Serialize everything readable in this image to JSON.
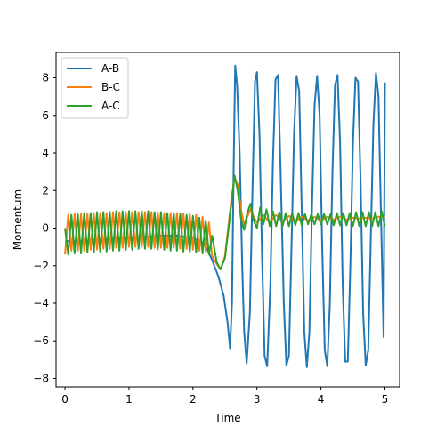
{
  "chart_data": {
    "type": "line",
    "title": "",
    "xlabel": "Time",
    "ylabel": "Momentum",
    "xlim": [
      -0.14,
      5.23
    ],
    "ylim": [
      -8.45,
      9.35
    ],
    "xticks": [
      0,
      1,
      2,
      3,
      4,
      5
    ],
    "yticks": [
      -8,
      -6,
      -4,
      -2,
      0,
      2,
      4,
      6,
      8
    ],
    "grid": false,
    "legend_position": "upper-left",
    "series": [
      {
        "name": "A-B",
        "color": "#1f77b4",
        "points": [
          [
            0.0,
            -0.7
          ],
          [
            0.25,
            -0.68
          ],
          [
            0.5,
            -0.63
          ],
          [
            0.75,
            -0.57
          ],
          [
            1.0,
            -0.52
          ],
          [
            1.25,
            -0.46
          ],
          [
            1.5,
            -0.4
          ],
          [
            1.75,
            -0.4
          ],
          [
            2.0,
            -0.55
          ],
          [
            2.15,
            -0.75
          ],
          [
            2.22,
            -1.1
          ],
          [
            2.3,
            -1.7
          ],
          [
            2.4,
            -2.6
          ],
          [
            2.48,
            -3.6
          ],
          [
            2.54,
            -5.0
          ],
          [
            2.58,
            -6.4
          ],
          [
            2.61,
            -4.0
          ],
          [
            2.635,
            3.0
          ],
          [
            2.66,
            8.65
          ],
          [
            2.69,
            7.6
          ],
          [
            2.73,
            4.0
          ],
          [
            2.77,
            -2.0
          ],
          [
            2.8,
            -5.5
          ],
          [
            2.84,
            -7.2
          ],
          [
            2.89,
            -4.5
          ],
          [
            2.93,
            2.0
          ],
          [
            2.97,
            7.8
          ],
          [
            3.0,
            8.3
          ],
          [
            3.04,
            5.0
          ],
          [
            3.08,
            -1.5
          ],
          [
            3.12,
            -6.8
          ],
          [
            3.16,
            -7.35
          ],
          [
            3.21,
            -3.0
          ],
          [
            3.25,
            3.5
          ],
          [
            3.29,
            7.9
          ],
          [
            3.33,
            8.15
          ],
          [
            3.37,
            3.0
          ],
          [
            3.42,
            -4.0
          ],
          [
            3.46,
            -7.3
          ],
          [
            3.5,
            -6.8
          ],
          [
            3.54,
            -1.0
          ],
          [
            3.58,
            5.0
          ],
          [
            3.62,
            8.1
          ],
          [
            3.66,
            7.3
          ],
          [
            3.7,
            1.0
          ],
          [
            3.74,
            -5.5
          ],
          [
            3.78,
            -7.4
          ],
          [
            3.82,
            -5.5
          ],
          [
            3.86,
            1.0
          ],
          [
            3.9,
            6.5
          ],
          [
            3.94,
            8.1
          ],
          [
            3.98,
            6.0
          ],
          [
            4.02,
            -1.0
          ],
          [
            4.06,
            -6.5
          ],
          [
            4.1,
            -7.35
          ],
          [
            4.14,
            -4.0
          ],
          [
            4.18,
            3.0
          ],
          [
            4.22,
            7.6
          ],
          [
            4.26,
            8.15
          ],
          [
            4.3,
            4.5
          ],
          [
            4.34,
            -3.0
          ],
          [
            4.38,
            -7.1
          ],
          [
            4.42,
            -7.1
          ],
          [
            4.46,
            -2.0
          ],
          [
            4.5,
            4.5
          ],
          [
            4.54,
            8.0
          ],
          [
            4.58,
            7.8
          ],
          [
            4.62,
            2.5
          ],
          [
            4.66,
            -4.5
          ],
          [
            4.7,
            -7.3
          ],
          [
            4.74,
            -6.5
          ],
          [
            4.78,
            -0.5
          ],
          [
            4.82,
            5.5
          ],
          [
            4.86,
            8.25
          ],
          [
            4.9,
            7.0
          ],
          [
            4.94,
            0.5
          ],
          [
            4.98,
            -5.8
          ],
          [
            5.0,
            7.75
          ]
        ]
      },
      {
        "name": "B-C",
        "color": "#ff7f0e",
        "points": [
          [
            0.0,
            -1.4
          ],
          [
            0.05,
            0.7
          ],
          [
            0.1,
            -1.2
          ],
          [
            0.15,
            0.75
          ],
          [
            0.2,
            -1.2
          ],
          [
            0.25,
            0.75
          ],
          [
            0.3,
            -1.2
          ],
          [
            0.35,
            0.75
          ],
          [
            0.4,
            -1.15
          ],
          [
            0.45,
            0.8
          ],
          [
            0.5,
            -1.15
          ],
          [
            0.55,
            0.8
          ],
          [
            0.6,
            -1.1
          ],
          [
            0.65,
            0.8
          ],
          [
            0.7,
            -1.1
          ],
          [
            0.75,
            0.85
          ],
          [
            0.8,
            -1.05
          ],
          [
            0.85,
            0.85
          ],
          [
            0.9,
            -1.05
          ],
          [
            0.95,
            0.85
          ],
          [
            1.0,
            -1.0
          ],
          [
            1.05,
            0.85
          ],
          [
            1.1,
            -1.0
          ],
          [
            1.15,
            0.85
          ],
          [
            1.2,
            -1.0
          ],
          [
            1.25,
            0.85
          ],
          [
            1.3,
            -1.0
          ],
          [
            1.35,
            0.85
          ],
          [
            1.4,
            -1.05
          ],
          [
            1.45,
            0.85
          ],
          [
            1.5,
            -1.05
          ],
          [
            1.55,
            0.8
          ],
          [
            1.6,
            -1.05
          ],
          [
            1.65,
            0.8
          ],
          [
            1.7,
            -1.05
          ],
          [
            1.75,
            0.8
          ],
          [
            1.8,
            -1.1
          ],
          [
            1.85,
            0.75
          ],
          [
            1.9,
            -1.1
          ],
          [
            1.95,
            0.75
          ],
          [
            2.0,
            -1.15
          ],
          [
            2.05,
            0.7
          ],
          [
            2.1,
            -1.2
          ],
          [
            2.15,
            0.6
          ],
          [
            2.2,
            -1.25
          ],
          [
            2.25,
            0.3
          ],
          [
            2.3,
            -1.5
          ],
          [
            2.37,
            -1.9
          ],
          [
            2.43,
            -2.2
          ],
          [
            2.5,
            -1.5
          ],
          [
            2.55,
            0.0
          ],
          [
            2.6,
            1.5
          ],
          [
            2.65,
            2.7
          ],
          [
            2.7,
            2.3
          ],
          [
            2.75,
            1.0
          ],
          [
            2.8,
            0.2
          ],
          [
            2.85,
            0.6
          ],
          [
            2.9,
            1.0
          ],
          [
            2.95,
            0.6
          ],
          [
            3.0,
            0.3
          ],
          [
            3.1,
            0.7
          ],
          [
            3.2,
            0.3
          ],
          [
            3.3,
            0.7
          ],
          [
            3.4,
            0.35
          ],
          [
            3.5,
            0.65
          ],
          [
            3.6,
            0.35
          ],
          [
            3.7,
            0.6
          ],
          [
            3.8,
            0.4
          ],
          [
            3.9,
            0.6
          ],
          [
            4.0,
            0.4
          ],
          [
            4.1,
            0.6
          ],
          [
            4.2,
            0.45
          ],
          [
            4.3,
            0.6
          ],
          [
            4.4,
            0.45
          ],
          [
            4.5,
            0.55
          ],
          [
            4.6,
            0.5
          ],
          [
            4.7,
            0.55
          ],
          [
            4.8,
            0.5
          ],
          [
            4.9,
            0.6
          ],
          [
            5.0,
            0.6
          ]
        ]
      },
      {
        "name": "A-C",
        "color": "#2ca02c",
        "points": [
          [
            0.0,
            0.0
          ],
          [
            0.05,
            -1.4
          ],
          [
            0.1,
            0.7
          ],
          [
            0.15,
            -1.35
          ],
          [
            0.2,
            0.75
          ],
          [
            0.25,
            -1.35
          ],
          [
            0.3,
            0.8
          ],
          [
            0.35,
            -1.3
          ],
          [
            0.4,
            0.8
          ],
          [
            0.45,
            -1.3
          ],
          [
            0.5,
            0.85
          ],
          [
            0.55,
            -1.25
          ],
          [
            0.6,
            0.85
          ],
          [
            0.65,
            -1.25
          ],
          [
            0.7,
            0.85
          ],
          [
            0.75,
            -1.2
          ],
          [
            0.8,
            0.9
          ],
          [
            0.85,
            -1.2
          ],
          [
            0.9,
            0.9
          ],
          [
            0.95,
            -1.15
          ],
          [
            1.0,
            0.9
          ],
          [
            1.05,
            -1.15
          ],
          [
            1.1,
            0.9
          ],
          [
            1.15,
            -1.1
          ],
          [
            1.2,
            0.9
          ],
          [
            1.25,
            -1.1
          ],
          [
            1.3,
            0.9
          ],
          [
            1.35,
            -1.1
          ],
          [
            1.4,
            0.85
          ],
          [
            1.45,
            -1.15
          ],
          [
            1.5,
            0.85
          ],
          [
            1.55,
            -1.15
          ],
          [
            1.6,
            0.8
          ],
          [
            1.65,
            -1.2
          ],
          [
            1.7,
            0.8
          ],
          [
            1.75,
            -1.2
          ],
          [
            1.8,
            0.75
          ],
          [
            1.85,
            -1.25
          ],
          [
            1.9,
            0.7
          ],
          [
            1.95,
            -1.25
          ],
          [
            2.0,
            0.65
          ],
          [
            2.05,
            -1.3
          ],
          [
            2.1,
            0.55
          ],
          [
            2.15,
            -1.35
          ],
          [
            2.2,
            0.4
          ],
          [
            2.25,
            -1.4
          ],
          [
            2.3,
            -0.4
          ],
          [
            2.37,
            -1.8
          ],
          [
            2.43,
            -2.2
          ],
          [
            2.5,
            -1.6
          ],
          [
            2.55,
            -0.2
          ],
          [
            2.6,
            1.3
          ],
          [
            2.65,
            2.8
          ],
          [
            2.7,
            2.0
          ],
          [
            2.75,
            0.5
          ],
          [
            2.8,
            -0.1
          ],
          [
            2.85,
            0.8
          ],
          [
            2.9,
            1.3
          ],
          [
            2.95,
            0.4
          ],
          [
            3.0,
            0.0
          ],
          [
            3.05,
            1.1
          ],
          [
            3.1,
            0.2
          ],
          [
            3.15,
            1.0
          ],
          [
            3.2,
            0.1
          ],
          [
            3.25,
            0.9
          ],
          [
            3.3,
            0.1
          ],
          [
            3.35,
            0.85
          ],
          [
            3.4,
            0.1
          ],
          [
            3.45,
            0.8
          ],
          [
            3.5,
            0.1
          ],
          [
            3.55,
            0.8
          ],
          [
            3.6,
            0.15
          ],
          [
            3.65,
            0.8
          ],
          [
            3.7,
            0.15
          ],
          [
            3.75,
            0.75
          ],
          [
            3.8,
            0.2
          ],
          [
            3.85,
            0.75
          ],
          [
            3.9,
            0.2
          ],
          [
            3.95,
            0.75
          ],
          [
            4.0,
            0.2
          ],
          [
            4.05,
            0.75
          ],
          [
            4.1,
            0.2
          ],
          [
            4.15,
            0.75
          ],
          [
            4.2,
            0.15
          ],
          [
            4.25,
            0.8
          ],
          [
            4.3,
            0.15
          ],
          [
            4.35,
            0.8
          ],
          [
            4.4,
            0.15
          ],
          [
            4.45,
            0.8
          ],
          [
            4.5,
            0.1
          ],
          [
            4.55,
            0.85
          ],
          [
            4.6,
            0.1
          ],
          [
            4.65,
            0.85
          ],
          [
            4.7,
            0.1
          ],
          [
            4.75,
            0.85
          ],
          [
            4.8,
            0.1
          ],
          [
            4.85,
            0.85
          ],
          [
            4.9,
            0.1
          ],
          [
            4.95,
            0.9
          ],
          [
            5.0,
            0.1
          ]
        ]
      }
    ]
  }
}
